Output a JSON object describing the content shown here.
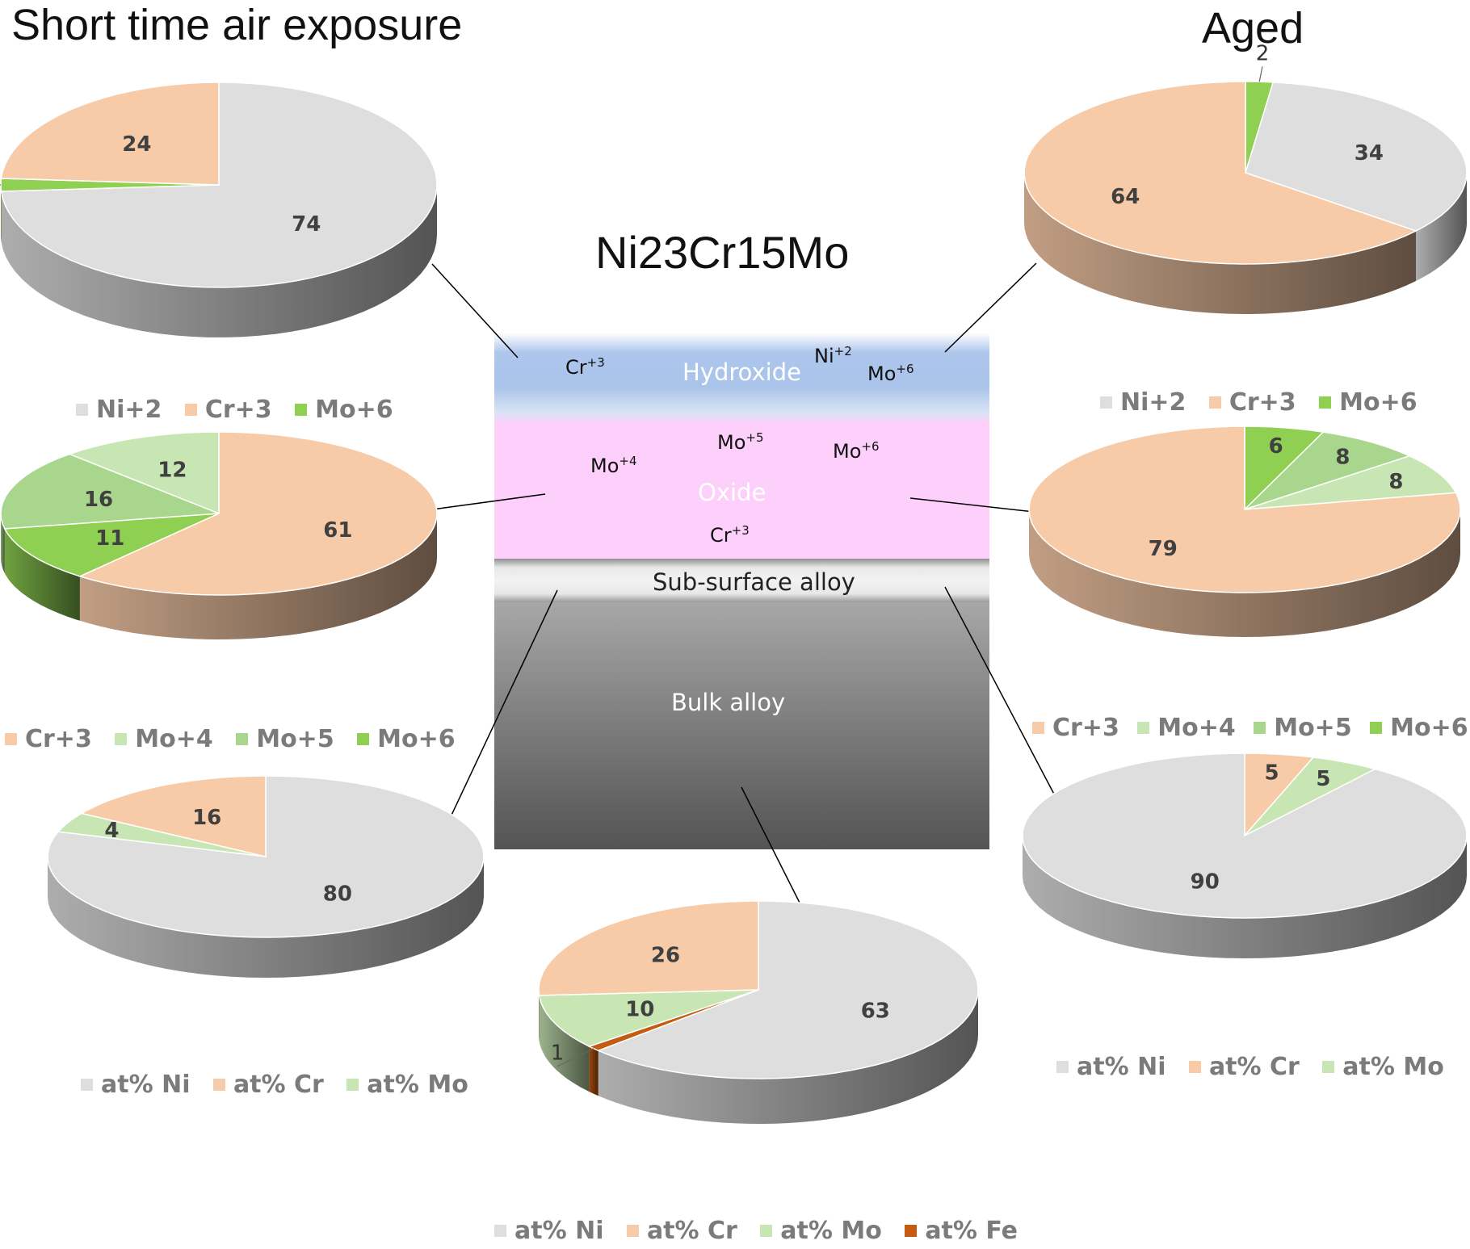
{
  "titles": {
    "left": "Short time air exposure",
    "right": "Aged",
    "material": "Ni23Cr15Mo"
  },
  "layers": {
    "hydroxide": "Hydroxide",
    "oxide": "Oxide",
    "subsurface": "Sub-surface alloy",
    "bulk": "Bulk alloy"
  },
  "ions": {
    "hydroxide": [
      {
        "base": "Cr",
        "charge": "+3"
      },
      {
        "base": "Ni",
        "charge": "+2"
      },
      {
        "base": "Mo",
        "charge": "+6"
      }
    ],
    "oxide": [
      {
        "base": "Mo",
        "charge": "+4"
      },
      {
        "base": "Mo",
        "charge": "+5"
      },
      {
        "base": "Mo",
        "charge": "+6"
      },
      {
        "base": "Cr",
        "charge": "+3"
      }
    ]
  },
  "colors": {
    "ni": "#dedede",
    "cr": "#f8cba8",
    "mo": "#c8e6b4",
    "mo4": "#c8e6b4",
    "mo5": "#a8d68c",
    "mo6": "#8fd053",
    "fe": "#c55a11",
    "hydroxide": "#a9c3ea",
    "oxide": "#fdd0fb"
  },
  "chart_data": [
    {
      "id": "air-hydroxide",
      "type": "pie",
      "labels": [
        "Ni+2",
        "Cr+3",
        "Mo+6"
      ],
      "values": [
        74,
        24,
        2
      ],
      "legend": [
        "Ni+2",
        "Cr+3",
        "Mo+6"
      ]
    },
    {
      "id": "air-oxide",
      "type": "pie",
      "labels": [
        "Cr+3",
        "Mo+4",
        "Mo+5",
        "Mo+6"
      ],
      "values": [
        61,
        12,
        16,
        11
      ],
      "legend": [
        "Cr+3",
        "Mo+4",
        "Mo+5",
        "Mo+6"
      ]
    },
    {
      "id": "air-subsurface",
      "type": "pie",
      "labels": [
        "at% Ni",
        "at% Cr",
        "at% Mo"
      ],
      "values": [
        80,
        16,
        4
      ],
      "legend": [
        "at% Ni",
        "at% Cr",
        "at% Mo"
      ]
    },
    {
      "id": "aged-hydroxide",
      "type": "pie",
      "labels": [
        "Ni+2",
        "Cr+3",
        "Mo+6"
      ],
      "values": [
        34,
        64,
        2
      ],
      "legend": [
        "Ni+2",
        "Cr+3",
        "Mo+6"
      ]
    },
    {
      "id": "aged-oxide",
      "type": "pie",
      "labels": [
        "Cr+3",
        "Mo+4",
        "Mo+5",
        "Mo+6"
      ],
      "values": [
        79,
        8,
        8,
        6
      ],
      "legend": [
        "Cr+3",
        "Mo+4",
        "Mo+5",
        "Mo+6"
      ]
    },
    {
      "id": "aged-subsurface",
      "type": "pie",
      "labels": [
        "at% Ni",
        "at% Cr",
        "at% Mo"
      ],
      "values": [
        90,
        5,
        5
      ],
      "legend": [
        "at% Ni",
        "at% Cr",
        "at% Mo"
      ]
    },
    {
      "id": "bulk",
      "type": "pie",
      "labels": [
        "at% Ni",
        "at% Cr",
        "at% Mo",
        "at% Fe"
      ],
      "values": [
        63,
        26,
        10,
        1
      ],
      "legend": [
        "at% Ni",
        "at% Cr",
        "at% Mo",
        "at% Fe"
      ]
    }
  ]
}
